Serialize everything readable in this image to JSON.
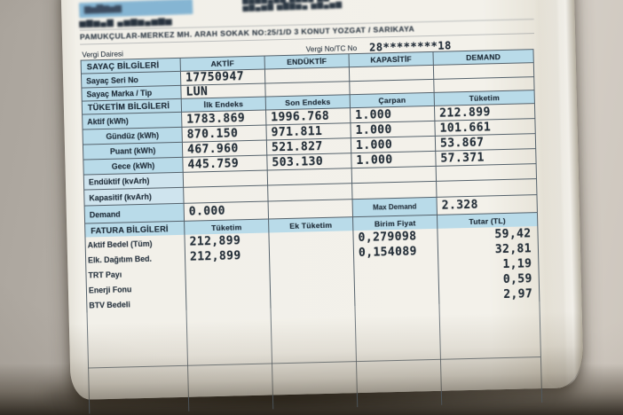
{
  "colors": {
    "background": "#b9b3ab",
    "paper": "#f2f0e9",
    "band_blue": "#85b5d3",
    "header_blue": "#b9dbe9",
    "border": "#55626c",
    "ink": "#22303c",
    "desk_shadow": "#2c2417"
  },
  "top": {
    "band_left_smudge": "▆▅▇▆▅▆",
    "company_line1": "▆▅▇▆▄▆▅ ▆▅▇▄ ▆▅",
    "company_line2": "▅▆▄▅▆ ▅▇▆▅▄ ▅▆▄▅▆",
    "band_right_smudge": "▅▆▇▅▆▇",
    "customer_smudge": "▅▆▅▄▆ ▄▅▆▅▄▅▆▅",
    "address_line": "PAMUKÇULAR-MERKEZ MH. ARAH SOKAK NO:25/1/D 3 KONUT YOZGAT / SARIKAYA",
    "vergi_dairesi_label": "Vergi Dairesi",
    "vergi_no_label": "Vergi No/TC No",
    "vergi_no_masked": "28********18"
  },
  "meter": {
    "section_label": "SAYAÇ BİLGİLERİ",
    "columns": [
      "AKTİF",
      "ENDÜKTİF",
      "KAPASİTİF",
      "DEMAND"
    ],
    "serial_label": "Sayaç Seri No",
    "serial_value": "17750947",
    "brand_label": "Sayaç Marka / Tip",
    "brand_value": "LUN"
  },
  "consumption": {
    "section_label": "TÜKETİM BİLGİLERİ",
    "columns": [
      "İlk Endeks",
      "Son Endeks",
      "Çarpan",
      "Tüketim"
    ],
    "rows": [
      {
        "label": "Aktif (kWh)",
        "ilk": "1783.869",
        "son": "1996.768",
        "carpan": "1.000",
        "tuketim": "212.899"
      },
      {
        "label": "Gündüz (kWh)",
        "ilk": "870.150",
        "son": "971.811",
        "carpan": "1.000",
        "tuketim": "101.661"
      },
      {
        "label": "Puant (kWh)",
        "ilk": "467.960",
        "son": "521.827",
        "carpan": "1.000",
        "tuketim": "53.867"
      },
      {
        "label": "Gece (kWh)",
        "ilk": "445.759",
        "son": "503.130",
        "carpan": "1.000",
        "tuketim": "57.371"
      },
      {
        "label": "Endüktif (kvArh)",
        "ilk": "",
        "son": "",
        "carpan": "",
        "tuketim": ""
      },
      {
        "label": "Kapasitif (kvArh)",
        "ilk": "",
        "son": "",
        "carpan": "",
        "tuketim": ""
      }
    ],
    "demand": {
      "label": "Demand",
      "value": "0.000",
      "max_label": "Max Demand",
      "max_value": "2.328"
    }
  },
  "invoice": {
    "section_label": "FATURA BİLGİLERİ",
    "columns": [
      "Tüketim",
      "Ek Tüketim",
      "Birim Fiyat",
      "Tutar (TL)"
    ],
    "rows": [
      {
        "label": "Aktif Bedel (Tüm)",
        "tuketim": "212,899",
        "ek": "",
        "birim": "0,279098",
        "tutar": "59,42"
      },
      {
        "label": "Elk. Dağıtım Bed.",
        "tuketim": "212,899",
        "ek": "",
        "birim": "0,154089",
        "tutar": "32,81"
      },
      {
        "label": "TRT Payı",
        "tuketim": "",
        "ek": "",
        "birim": "",
        "tutar": "1,19"
      },
      {
        "label": "Enerji Fonu",
        "tuketim": "",
        "ek": "",
        "birim": "",
        "tutar": "0,59"
      },
      {
        "label": "BTV Bedeli",
        "tuketim": "",
        "ek": "",
        "birim": "",
        "tutar": "2,97"
      }
    ]
  }
}
